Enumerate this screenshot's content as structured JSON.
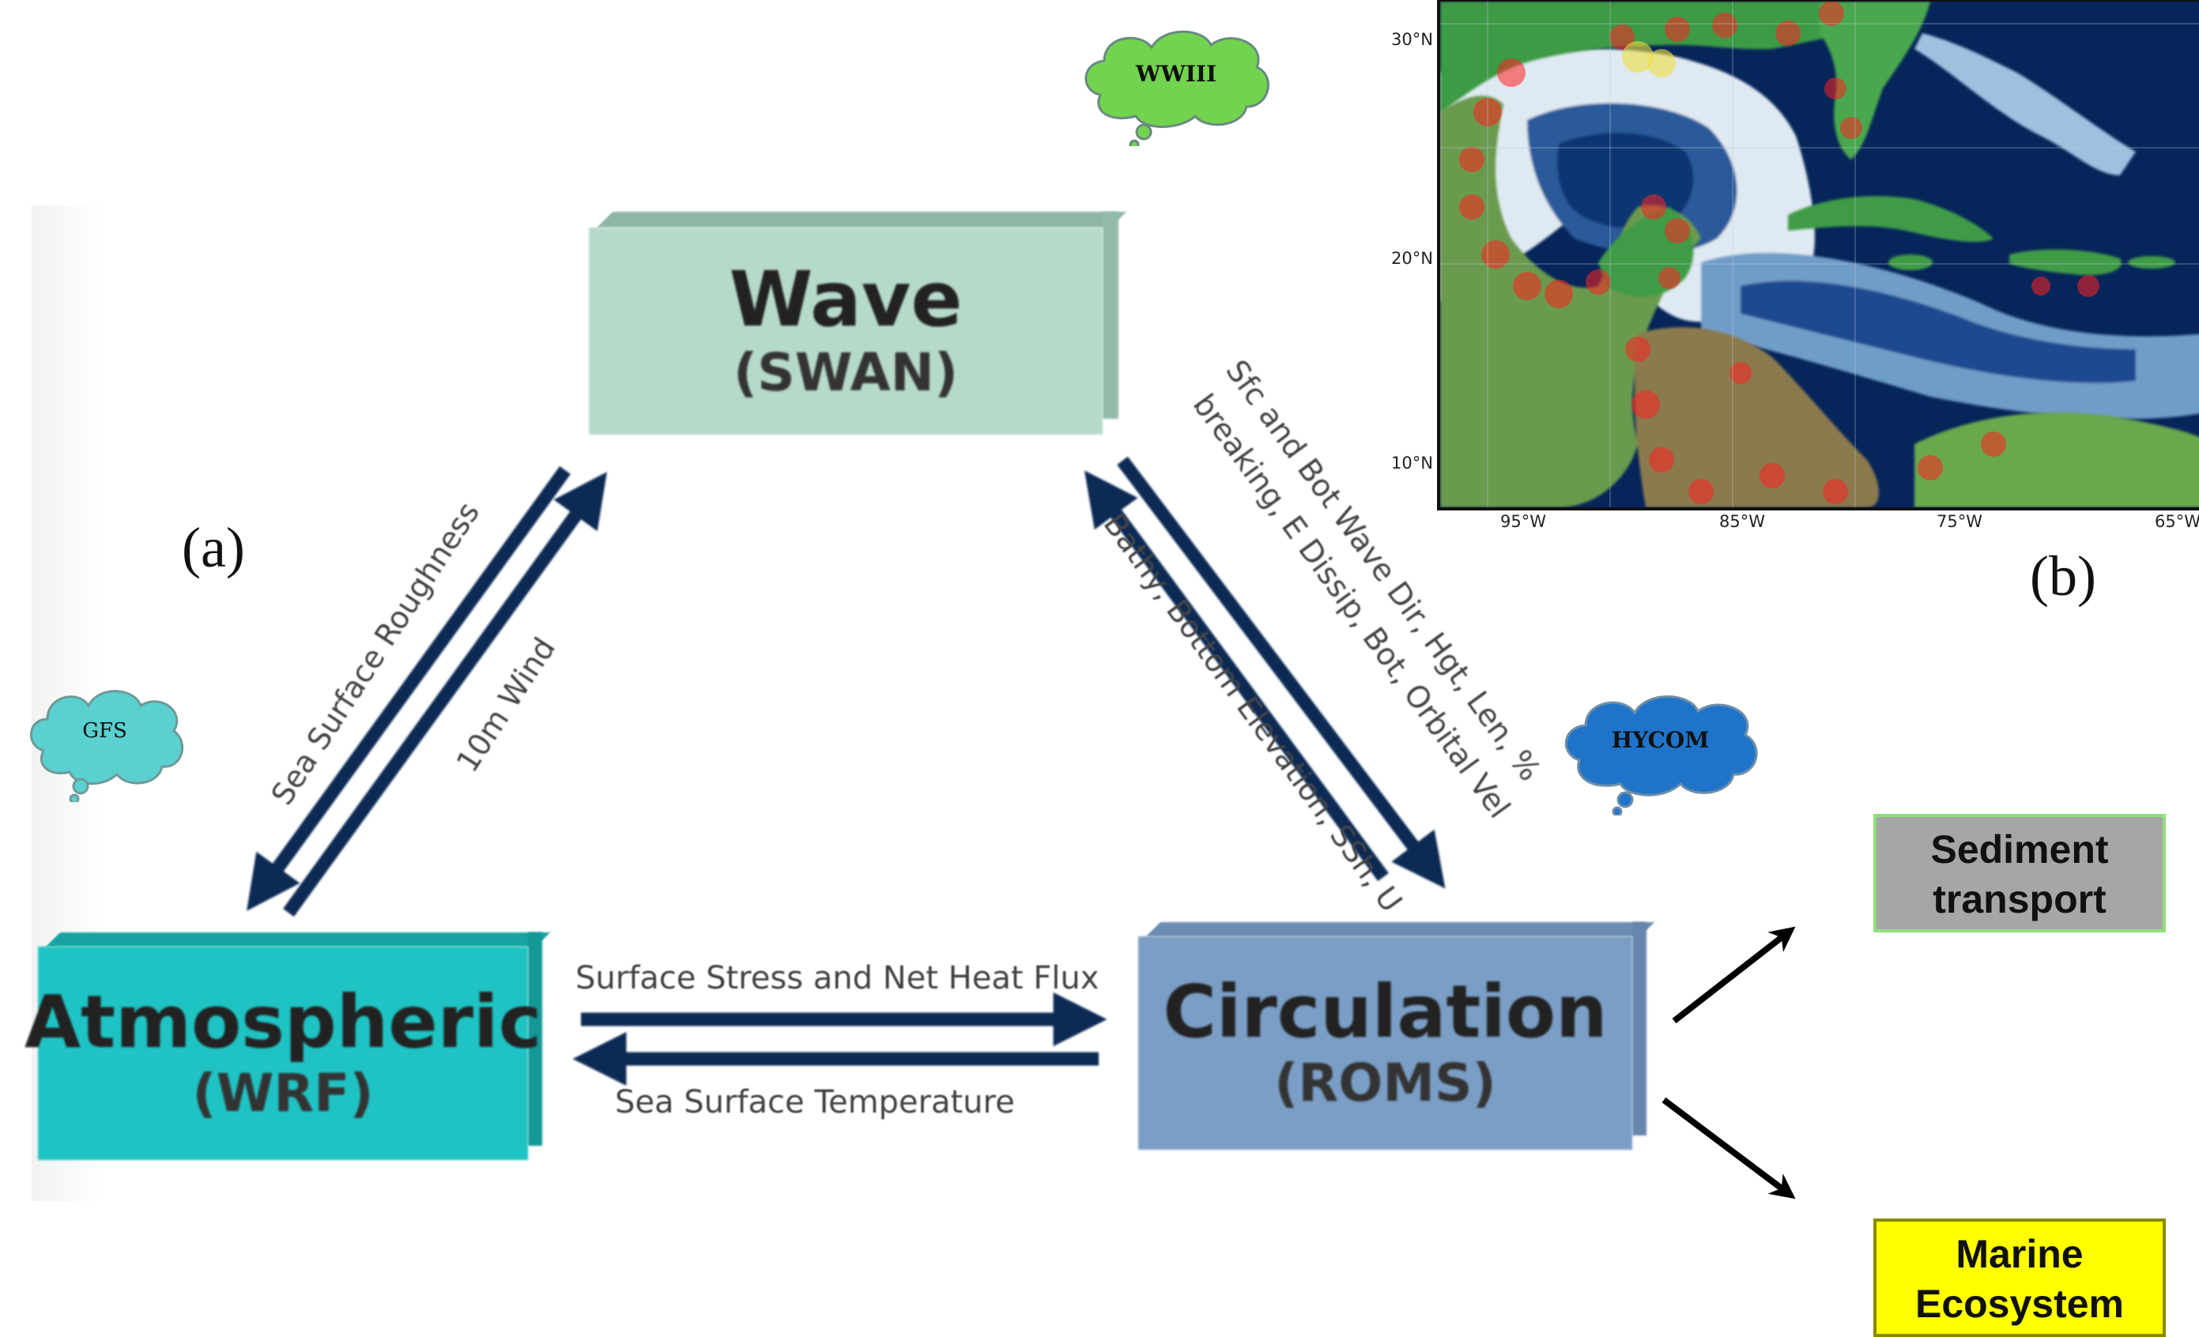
{
  "panels": {
    "a": "(a)",
    "b": "(b)"
  },
  "boxes": {
    "wave": {
      "title": "Wave",
      "model": "(SWAN)",
      "color": "#b6dac9"
    },
    "atmospheric": {
      "title": "Atmospheric",
      "model": "(WRF)",
      "color": "#1fc3c3"
    },
    "circulation": {
      "title": "Circulation",
      "model": "(ROMS)",
      "color": "#7a9ec6"
    }
  },
  "flows": {
    "wave_to_atm": "Sea Surface Roughness",
    "atm_to_wave": "10m Wind",
    "wave_to_circ_line1": "Sfc and Bot Wave Dir, Hgt, Len, %",
    "wave_to_circ_line2": "breaking, E Dissip, Bot, Orbital Vel",
    "circ_to_wave": "Bathy, Bottom Elevation, SSh, U",
    "atm_to_circ": "Surface Stress and Net Heat Flux",
    "circ_to_atm": "Sea Surface Temperature"
  },
  "clouds": {
    "wwiii": {
      "label": "WWIII",
      "color": "#72d34f"
    },
    "gfs": {
      "label": "GFS",
      "color": "#5ad0d0"
    },
    "hycom": {
      "label": "HYCOM",
      "color": "#1f74c9"
    }
  },
  "outputs": {
    "sediment_line1": "Sediment",
    "sediment_line2": "transport",
    "marine_line1": "Marine",
    "marine_line2": "Ecosystem"
  },
  "map": {
    "lat_labels": [
      "30°N",
      "20°N",
      "10°N"
    ],
    "lon_labels": [
      "95°W",
      "85°W",
      "75°W",
      "65°W"
    ]
  },
  "colors": {
    "arrow": "#0d2a55",
    "output_arrow": "#000000"
  }
}
